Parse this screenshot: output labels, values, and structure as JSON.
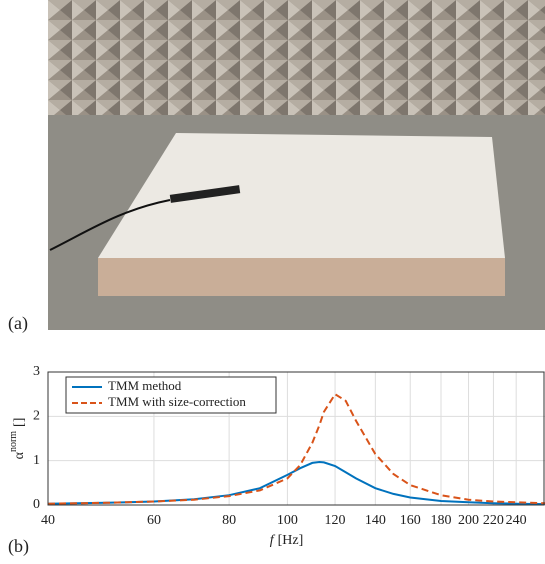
{
  "panel_labels": [
    "(a)",
    "(b)"
  ],
  "chart_data": {
    "type": "line",
    "x_label_symbol": "f",
    "x_label_unit": "[Hz]",
    "y_label_symbol": "α",
    "y_label_superscript": "norm",
    "y_label_unit": "[]",
    "x": [
      40,
      50,
      60,
      70,
      80,
      90,
      100,
      105,
      110,
      113,
      115,
      120,
      125,
      130,
      140,
      150,
      160,
      180,
      200,
      220,
      240,
      268
    ],
    "series": [
      {
        "name": "TMM method",
        "color": "#0072bd",
        "dash": "solid",
        "values": [
          0.03,
          0.05,
          0.08,
          0.13,
          0.22,
          0.38,
          0.68,
          0.83,
          0.95,
          0.97,
          0.96,
          0.88,
          0.74,
          0.6,
          0.38,
          0.25,
          0.17,
          0.09,
          0.06,
          0.04,
          0.03,
          0.02
        ]
      },
      {
        "name": "TMM with size-correction",
        "color": "#d95319",
        "dash": "dashed",
        "values": [
          0.03,
          0.05,
          0.08,
          0.12,
          0.2,
          0.33,
          0.6,
          0.9,
          1.4,
          1.8,
          2.1,
          2.5,
          2.35,
          1.9,
          1.15,
          0.7,
          0.45,
          0.22,
          0.12,
          0.08,
          0.06,
          0.04
        ]
      }
    ],
    "xlim": [
      40,
      268
    ],
    "xscale": "log",
    "xticks": [
      40,
      60,
      80,
      100,
      120,
      140,
      160,
      180,
      200,
      220,
      240
    ],
    "ylim": [
      0,
      3
    ],
    "yticks": [
      0,
      1,
      2,
      3
    ],
    "grid": true,
    "legend": "upper-left"
  }
}
